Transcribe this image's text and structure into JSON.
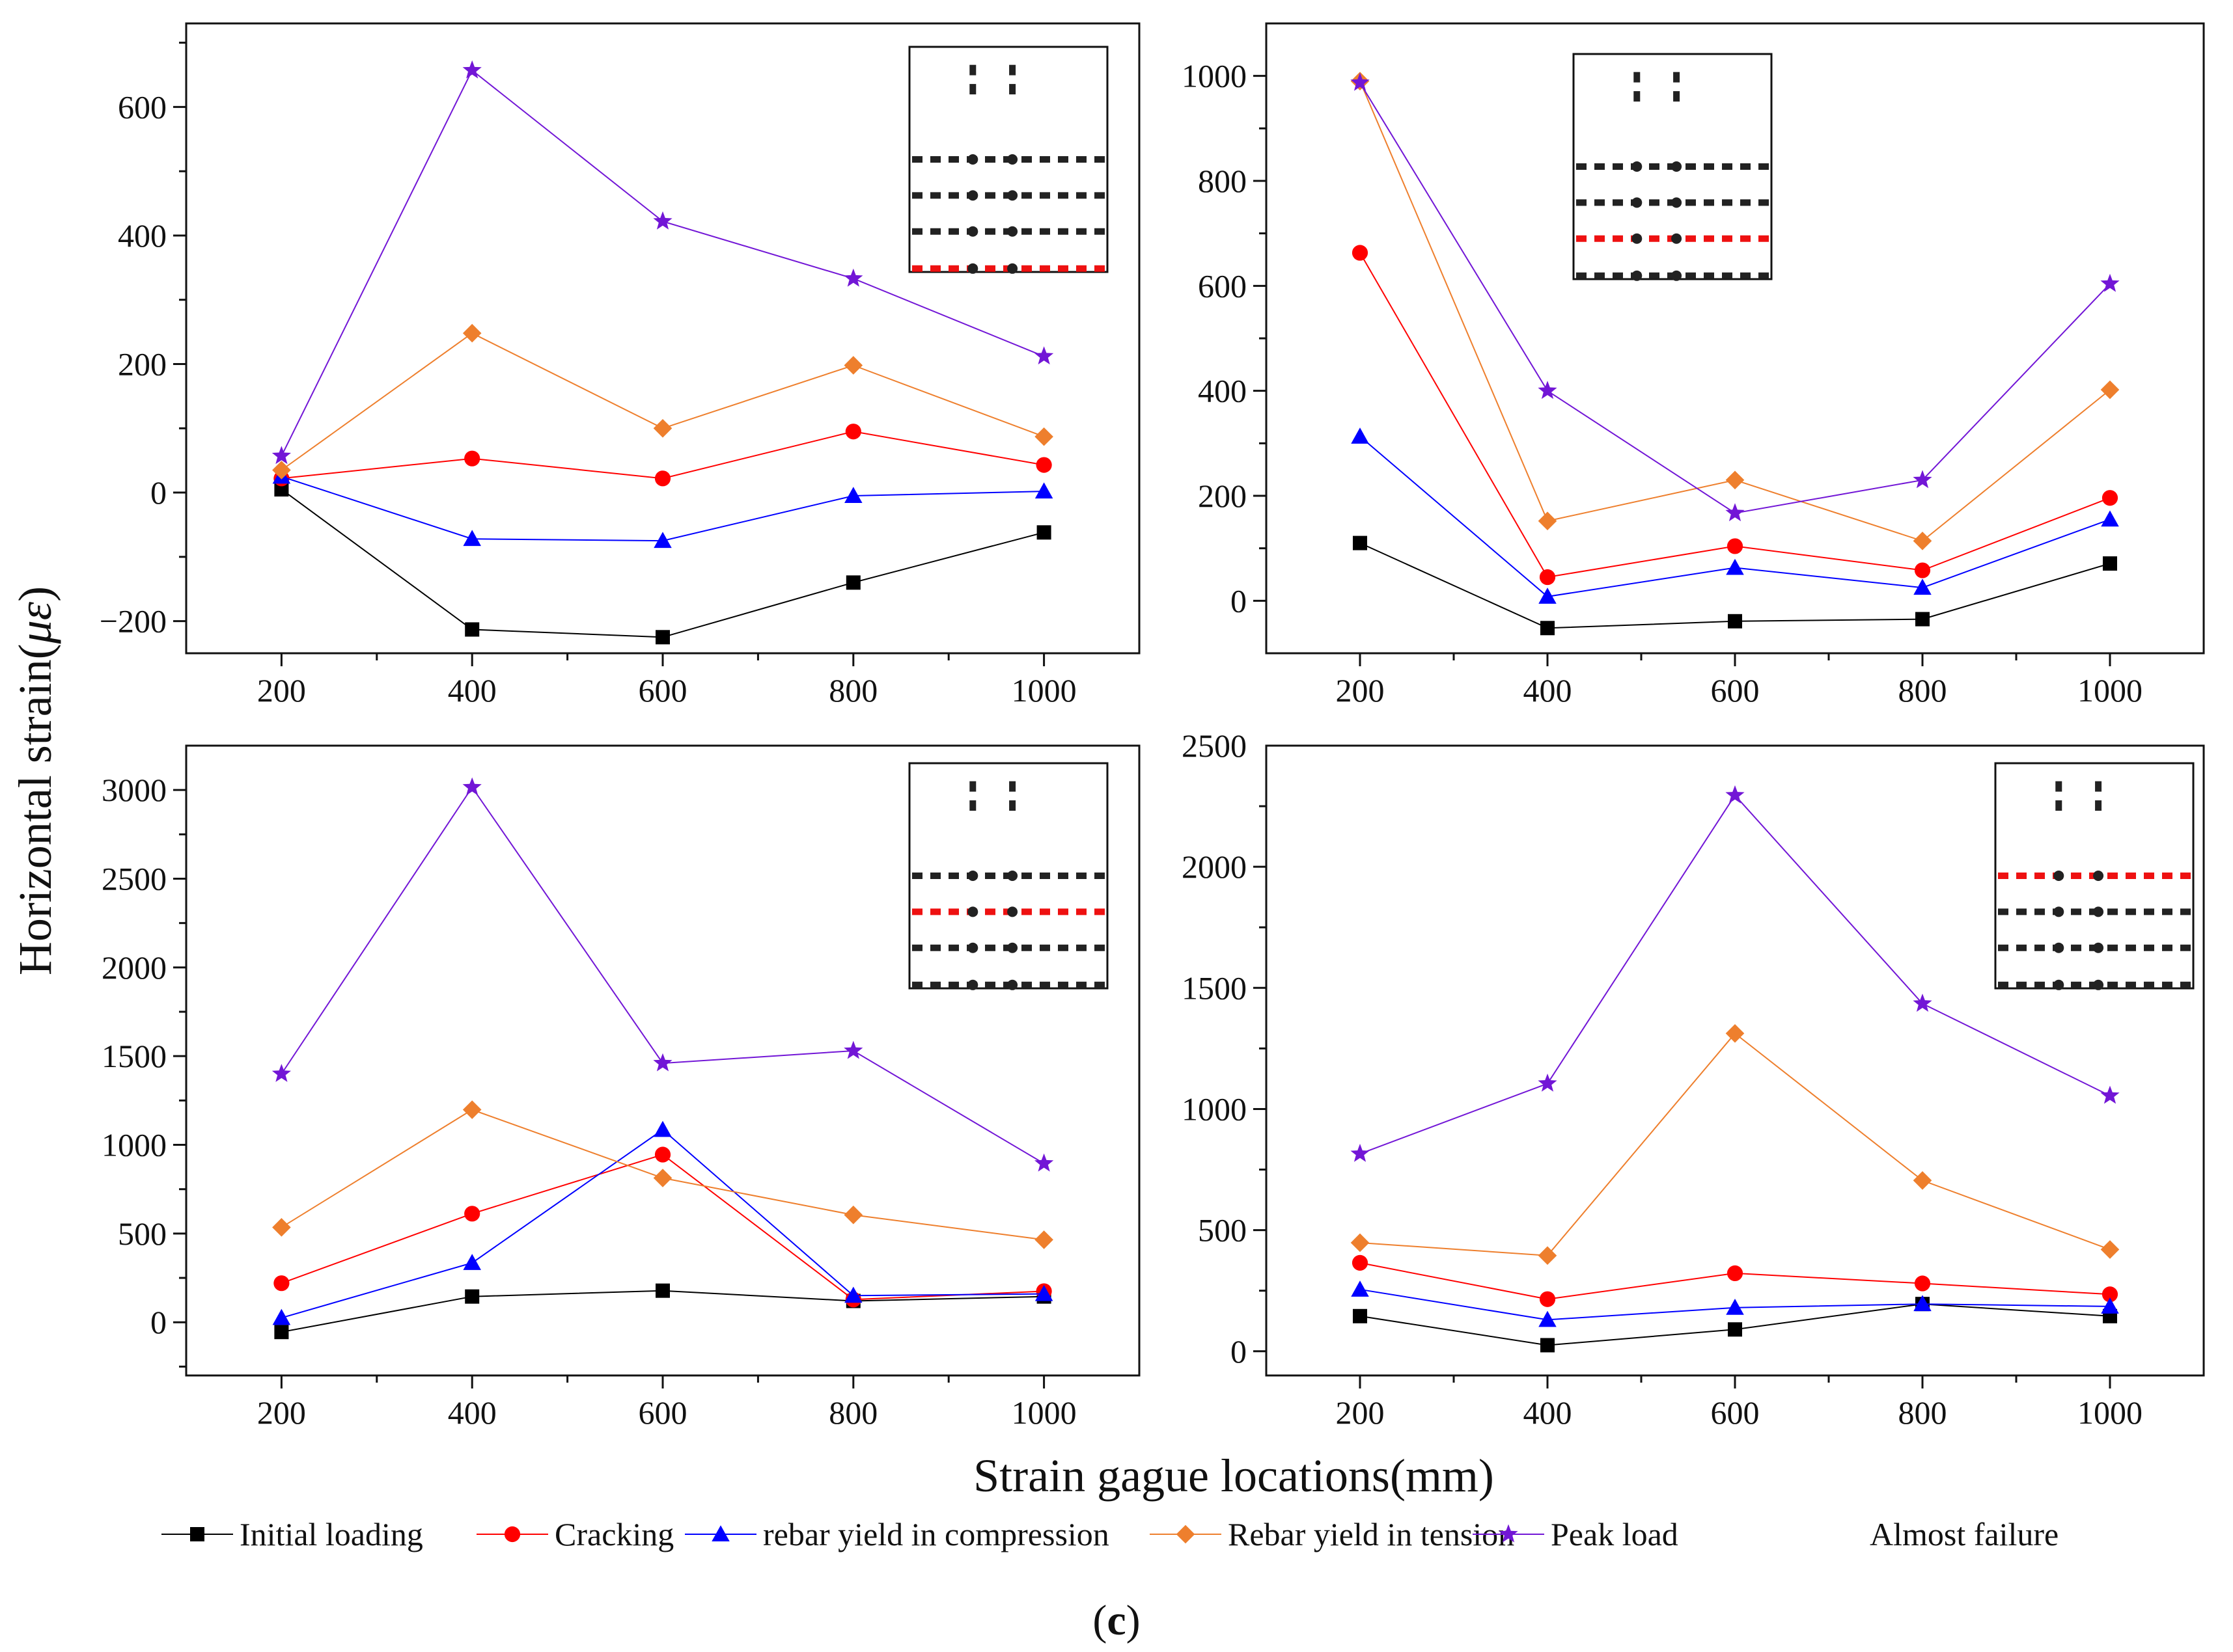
{
  "figure": {
    "ylabel_text": "Horizontal strain(",
    "ylabel_unit": "με",
    "ylabel_close": ")",
    "xlabel": "Strain gague locations(mm)",
    "caption_open": "(",
    "caption_letter": "c",
    "caption_close": ")"
  },
  "legend": {
    "entries": [
      {
        "name": "Initial loading",
        "color": "#000000",
        "marker": "square"
      },
      {
        "name": "Cracking",
        "color": "#ff0000",
        "marker": "circle"
      },
      {
        "name": "rebar yield in compression",
        "color": "#0000ff",
        "marker": "triangle"
      },
      {
        "name": "Rebar yield in tension",
        "color": "#ee7f2d",
        "marker": "diamond"
      },
      {
        "name": "Peak load",
        "color": "#7216d6",
        "marker": "star"
      },
      {
        "name": "Almost failure",
        "color": "#ffffff",
        "marker": "none"
      }
    ]
  },
  "chart_data": [
    {
      "type": "line",
      "panel": "top-left",
      "x": [
        200,
        400,
        600,
        800,
        1000
      ],
      "xticks": [
        200,
        400,
        600,
        800,
        1000
      ],
      "xlim": [
        100,
        1100
      ],
      "ylim": [
        -250,
        730
      ],
      "yticks": [
        -200,
        0,
        200,
        400,
        600
      ],
      "series": [
        {
          "name": "Initial loading",
          "values": [
            5,
            -213,
            -225,
            -140,
            -62
          ]
        },
        {
          "name": "Cracking",
          "values": [
            22,
            53,
            22,
            95,
            43
          ]
        },
        {
          "name": "rebar yield in compression",
          "values": [
            25,
            -72,
            -75,
            -5,
            2
          ]
        },
        {
          "name": "Rebar yield in tension",
          "values": [
            35,
            248,
            100,
            198,
            87
          ]
        },
        {
          "name": "Peak load",
          "values": [
            57,
            657,
            422,
            333,
            212
          ]
        }
      ],
      "inset": {
        "highlight_row": 3
      }
    },
    {
      "type": "line",
      "panel": "top-right",
      "x": [
        200,
        400,
        600,
        800,
        1000
      ],
      "xticks": [
        200,
        400,
        600,
        800,
        1000
      ],
      "xlim": [
        100,
        1100
      ],
      "ylim": [
        -100,
        1100
      ],
      "yticks": [
        0,
        200,
        400,
        600,
        800,
        1000
      ],
      "series": [
        {
          "name": "Initial loading",
          "values": [
            110,
            -52,
            -39,
            -35,
            71
          ]
        },
        {
          "name": "Cracking",
          "values": [
            663,
            45,
            104,
            58,
            196
          ]
        },
        {
          "name": "rebar yield in compression",
          "values": [
            313,
            8,
            63,
            25,
            155
          ]
        },
        {
          "name": "Rebar yield in tension",
          "values": [
            990,
            152,
            230,
            114,
            402
          ]
        },
        {
          "name": "Peak load",
          "values": [
            987,
            400,
            167,
            230,
            604
          ]
        }
      ],
      "inset": {
        "highlight_row": 2
      }
    },
    {
      "type": "line",
      "panel": "bottom-left",
      "x": [
        200,
        400,
        600,
        800,
        1000
      ],
      "xticks": [
        200,
        400,
        600,
        800,
        1000
      ],
      "xlim": [
        100,
        1100
      ],
      "ylim": [
        -300,
        3250
      ],
      "yticks": [
        0,
        500,
        1000,
        1500,
        2000,
        2500,
        3000
      ],
      "series": [
        {
          "name": "Initial loading",
          "values": [
            -55,
            145,
            178,
            120,
            145
          ]
        },
        {
          "name": "Cracking",
          "values": [
            220,
            612,
            945,
            128,
            175
          ]
        },
        {
          "name": "rebar yield in compression",
          "values": [
            25,
            335,
            1085,
            150,
            160
          ]
        },
        {
          "name": "Rebar yield in tension",
          "values": [
            535,
            1198,
            813,
            605,
            465
          ]
        },
        {
          "name": "Peak load",
          "values": [
            1400,
            3015,
            1460,
            1530,
            895
          ]
        }
      ],
      "inset": {
        "highlight_row": 1
      }
    },
    {
      "type": "line",
      "panel": "bottom-right",
      "x": [
        200,
        400,
        600,
        800,
        1000
      ],
      "xticks": [
        200,
        400,
        600,
        800,
        1000
      ],
      "xlim": [
        100,
        1100
      ],
      "ylim": [
        -100,
        2500
      ],
      "yticks": [
        0,
        500,
        1000,
        1500,
        2000,
        2500
      ],
      "series": [
        {
          "name": "Initial loading",
          "values": [
            145,
            25,
            90,
            195,
            145
          ]
        },
        {
          "name": "Cracking",
          "values": [
            365,
            215,
            322,
            280,
            235
          ]
        },
        {
          "name": "rebar yield in compression",
          "values": [
            255,
            130,
            180,
            195,
            185
          ]
        },
        {
          "name": "Rebar yield in tension",
          "values": [
            448,
            395,
            1312,
            705,
            420
          ]
        },
        {
          "name": "Peak load",
          "values": [
            815,
            1105,
            2295,
            1435,
            1055
          ]
        }
      ],
      "inset": {
        "highlight_row": 0
      }
    }
  ]
}
